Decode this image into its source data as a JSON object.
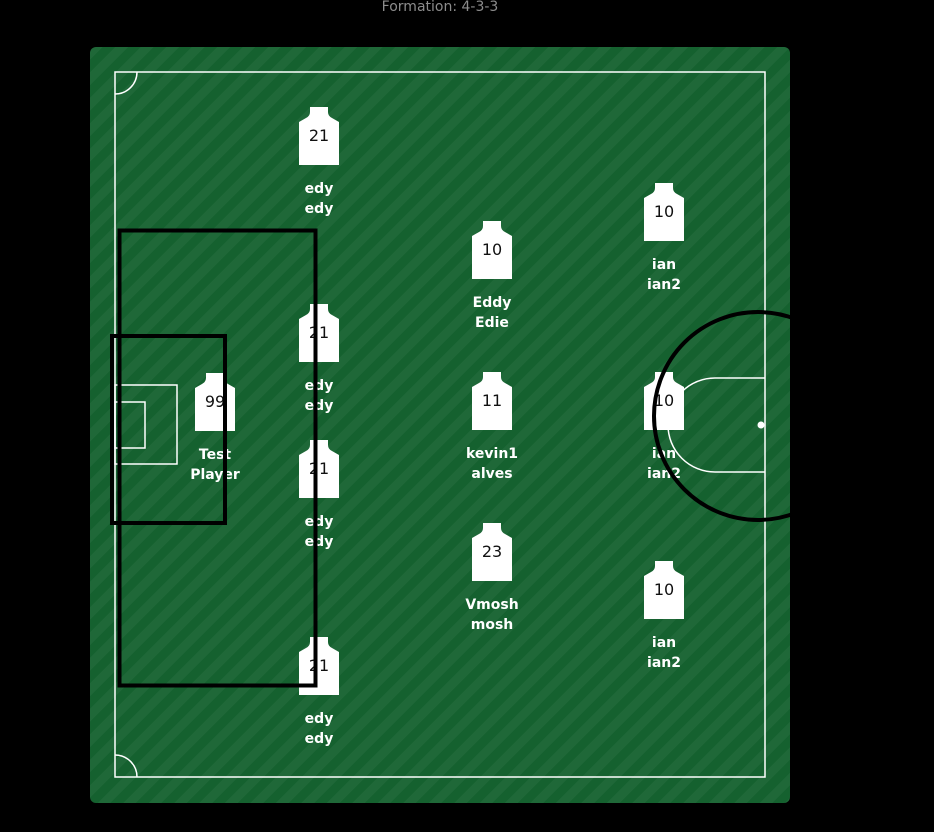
{
  "formation_label": "Formation: 4-3-3",
  "colors": {
    "pitch": "#15612f",
    "lines": "#ffffff",
    "shirt": "#ffffff",
    "number": "#111111",
    "page_background": "#000000",
    "label": "#8c8c8c"
  },
  "icons": [
    "shirt-icon"
  ],
  "players": [
    {
      "number": "99",
      "first": "Test",
      "last": "Player"
    },
    {
      "number": "21",
      "first": "edy",
      "last": "edy"
    },
    {
      "number": "21",
      "first": "edy",
      "last": "edy"
    },
    {
      "number": "21",
      "first": "edy",
      "last": "edy"
    },
    {
      "number": "21",
      "first": "edy",
      "last": "edy"
    },
    {
      "number": "10",
      "first": "Eddy",
      "last": "Edie"
    },
    {
      "number": "11",
      "first": "kevin1",
      "last": "alves"
    },
    {
      "number": "23",
      "first": "Vmosh",
      "last": "mosh"
    },
    {
      "number": "10",
      "first": "ian",
      "last": "ian2"
    },
    {
      "number": "10",
      "first": "ian",
      "last": "ian2"
    },
    {
      "number": "10",
      "first": "ian",
      "last": "ian2"
    }
  ]
}
